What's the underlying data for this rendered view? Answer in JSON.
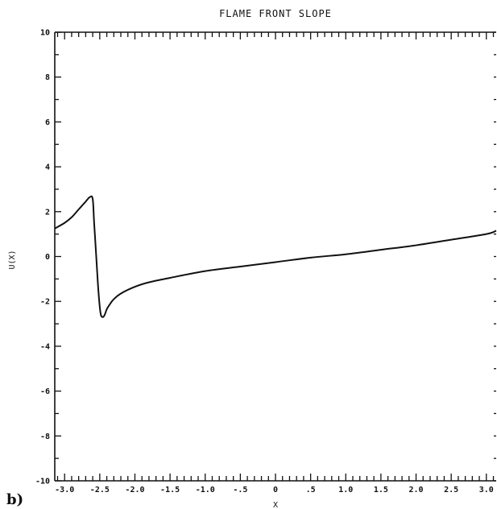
{
  "panel_label": "b)",
  "chart_data": {
    "type": "line",
    "title": "FLAME FRONT SLOPE",
    "xlabel": "X",
    "ylabel": "U(X)",
    "xlim": [
      -3.14,
      3.14
    ],
    "ylim": [
      -10,
      10
    ],
    "grid": false,
    "x_ticks": [
      -3.0,
      -2.5,
      -2.0,
      -1.5,
      -1.0,
      -0.5,
      0,
      0.5,
      1.0,
      1.5,
      2.0,
      2.5,
      3.0
    ],
    "x_tick_labels": [
      "-3.0",
      "-2.5",
      "-2.0",
      "-1.5",
      "-1.0",
      "-.5",
      "0",
      ".5",
      "1.0",
      "1.5",
      "2.0",
      "2.5",
      "3.0"
    ],
    "y_ticks": [
      -10,
      -8,
      -6,
      -4,
      -2,
      0,
      2,
      4,
      6,
      8,
      10
    ],
    "y_tick_labels": [
      "-10",
      "-8",
      "-6",
      "-4",
      "-2",
      "0",
      "2",
      "4",
      "6",
      "8",
      "10"
    ],
    "series": [
      {
        "x": [
          -3.14,
          -3.0,
          -2.9,
          -2.8,
          -2.7,
          -2.64,
          -2.6,
          -2.58,
          -2.55,
          -2.52,
          -2.49,
          -2.46,
          -2.43,
          -2.4,
          -2.35,
          -2.3,
          -2.2,
          -2.0,
          -1.8,
          -1.5,
          -1.0,
          -0.5,
          0.0,
          0.5,
          1.0,
          1.5,
          2.0,
          2.5,
          3.0,
          3.14
        ],
        "y": [
          1.25,
          1.5,
          1.75,
          2.1,
          2.45,
          2.65,
          2.55,
          1.5,
          0.0,
          -1.5,
          -2.5,
          -2.7,
          -2.6,
          -2.35,
          -2.1,
          -1.9,
          -1.65,
          -1.35,
          -1.15,
          -0.95,
          -0.65,
          -0.45,
          -0.25,
          -0.05,
          0.1,
          0.3,
          0.5,
          0.75,
          1.0,
          1.15
        ]
      }
    ]
  }
}
